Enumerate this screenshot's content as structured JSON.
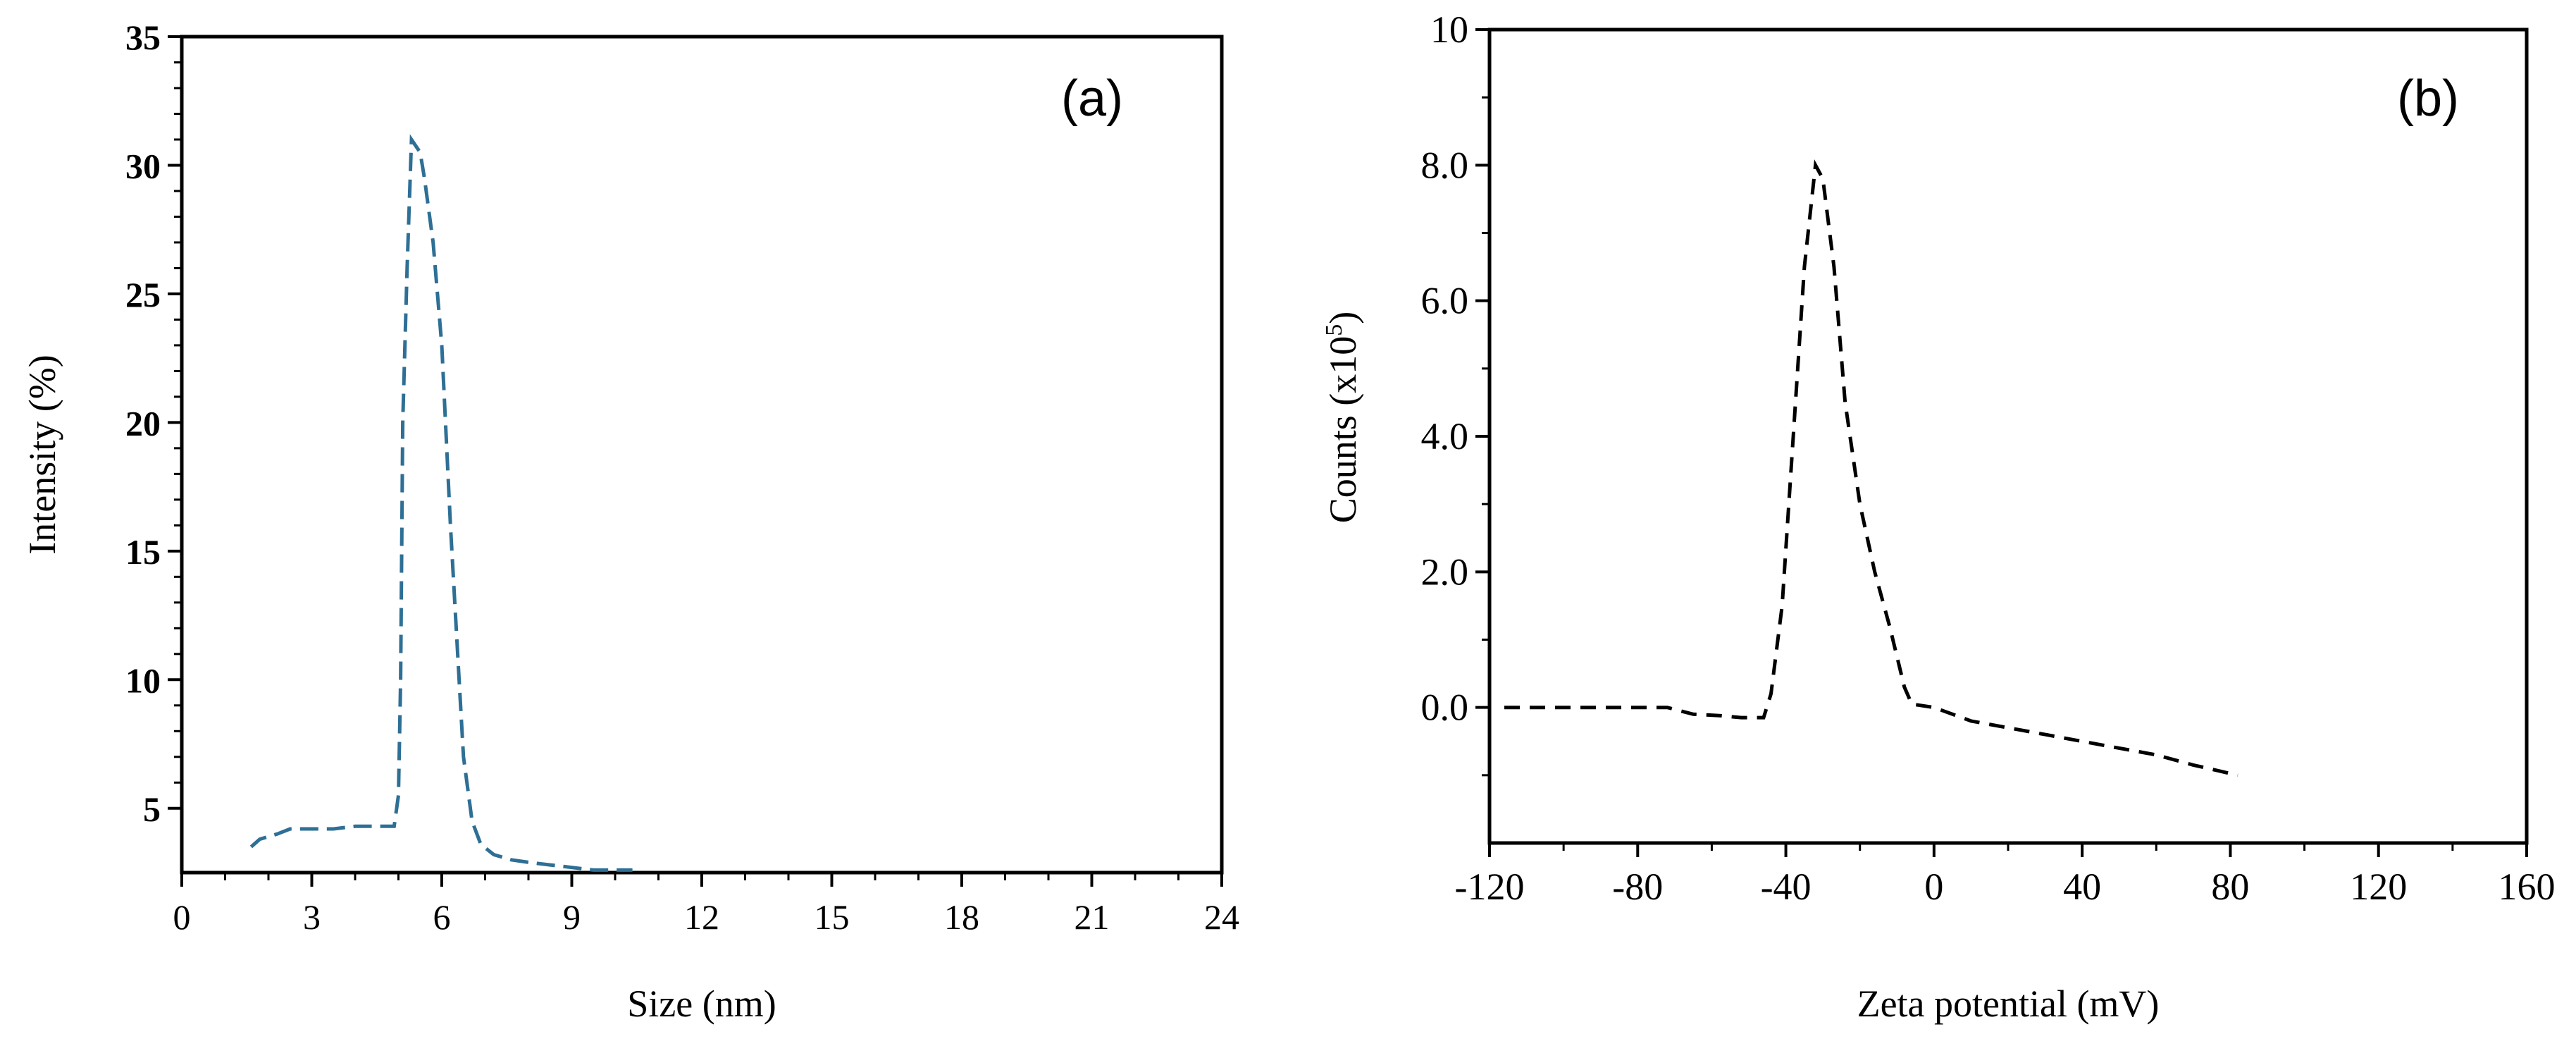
{
  "chart_data": [
    {
      "type": "line",
      "panel_label": "(a)",
      "title": "",
      "xlabel": "Size (nm)",
      "ylabel": "Intensity (%)",
      "xlim": [
        0,
        24
      ],
      "ylim": [
        2.5,
        35
      ],
      "xticks": [
        0,
        3,
        6,
        9,
        12,
        15,
        18,
        21,
        24
      ],
      "yticks": [
        5,
        10,
        15,
        20,
        25,
        30,
        35
      ],
      "line_style": "dashed",
      "line_color": "#2e6f95",
      "grid": false,
      "series": [
        {
          "x": [
            1.6,
            1.8,
            2.0,
            2.2,
            2.5,
            3.0,
            3.5,
            4.0,
            4.5,
            4.9,
            5.0,
            5.05,
            5.1,
            5.2,
            5.3,
            5.5,
            5.6,
            5.8,
            6.0,
            6.2,
            6.4,
            6.5,
            6.7,
            6.9,
            7.2,
            7.6,
            8.0,
            8.5,
            9.0,
            9.5,
            10.0,
            10.4
          ],
          "y": [
            3.5,
            3.8,
            3.9,
            4.0,
            4.2,
            4.2,
            4.2,
            4.3,
            4.3,
            4.3,
            5.5,
            10.0,
            20.0,
            26.0,
            31.0,
            30.5,
            29.5,
            27.0,
            23.0,
            16.0,
            10.0,
            7.0,
            4.5,
            3.6,
            3.2,
            3.0,
            2.9,
            2.8,
            2.7,
            2.6,
            2.6,
            2.6
          ]
        }
      ]
    },
    {
      "type": "line",
      "panel_label": "(b)",
      "title": "",
      "xlabel": "Zeta potential (mV)",
      "ylabel": "Counts (x10",
      "ylabel_sup": "5",
      "ylabel_end": ")",
      "xlim": [
        -120,
        160
      ],
      "ylim": [
        -2,
        10
      ],
      "xticks": [
        -120,
        -80,
        -40,
        0,
        40,
        80,
        120,
        160
      ],
      "yticks": [
        0.0,
        2.0,
        4.0,
        6.0,
        8.0,
        10
      ],
      "ytick_labels": [
        "0.0",
        "2.0",
        "4.0",
        "6.0",
        "8.0",
        "10"
      ],
      "line_style": "dashed",
      "line_color": "#000000",
      "grid": false,
      "series": [
        {
          "x": [
            -116,
            -100,
            -85,
            -72,
            -65,
            -58,
            -52,
            -46,
            -44,
            -41,
            -38,
            -35,
            -32,
            -30,
            -27,
            -24,
            -20,
            -16,
            -12,
            -8,
            -6,
            0,
            10,
            20,
            30,
            40,
            50,
            60,
            70,
            82
          ],
          "y": [
            0.0,
            0.0,
            0.0,
            0.0,
            -0.1,
            -0.12,
            -0.15,
            -0.15,
            0.2,
            1.5,
            4.0,
            6.5,
            8.0,
            7.8,
            6.5,
            4.5,
            3.0,
            2.0,
            1.2,
            0.3,
            0.05,
            0.0,
            -0.2,
            -0.3,
            -0.4,
            -0.5,
            -0.6,
            -0.7,
            -0.85,
            -1.0
          ]
        }
      ]
    }
  ]
}
